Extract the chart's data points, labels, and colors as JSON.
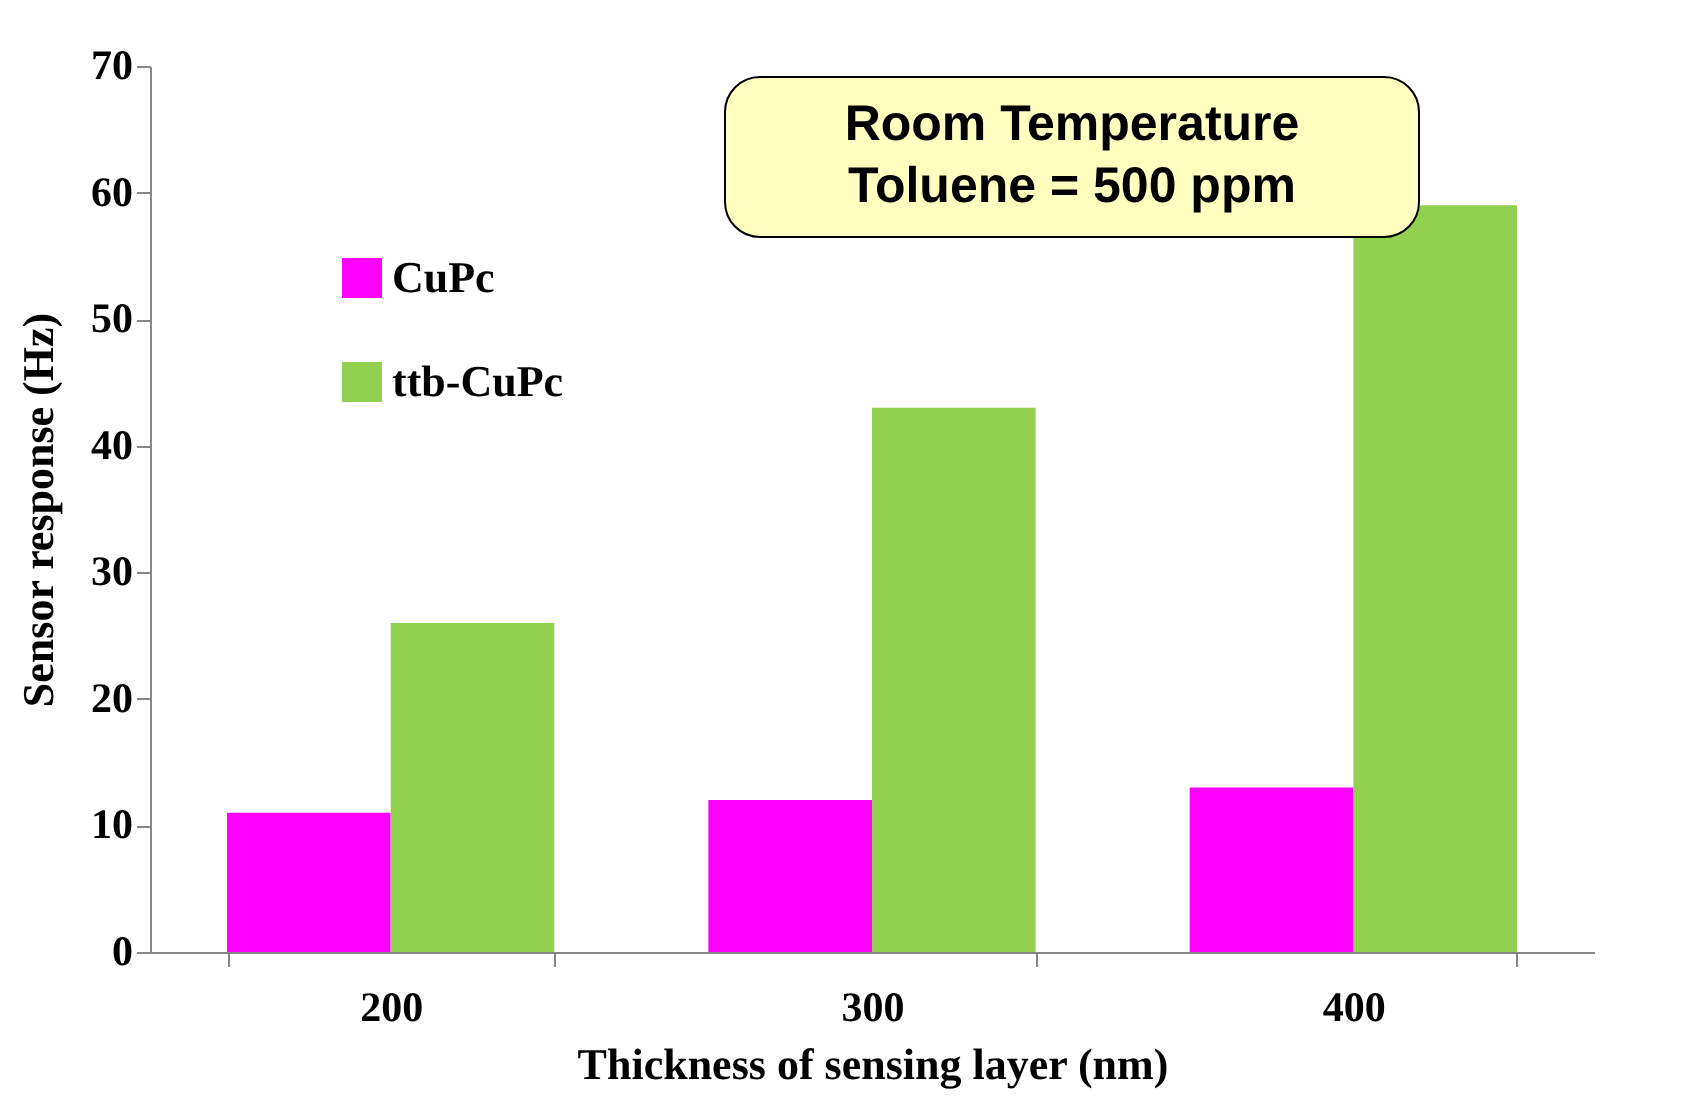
{
  "chart_data": {
    "type": "bar",
    "xlabel": "Thickness of sensing layer (nm)",
    "ylabel": "Sensor response (Hz)",
    "categories": [
      "200",
      "300",
      "400"
    ],
    "series": [
      {
        "name": "CuPc",
        "color": "#ff00ff",
        "values": [
          11,
          12,
          13
        ]
      },
      {
        "name": "ttb-CuPc",
        "color": "#92d050",
        "values": [
          26,
          43,
          59
        ]
      }
    ],
    "ylim": [
      0,
      70
    ],
    "yticks": [
      0,
      10,
      20,
      30,
      40,
      50,
      60,
      70
    ],
    "grid": false,
    "legend": "top left",
    "annotations": [
      "Room Temperature\nToluene = 500 ppm"
    ]
  }
}
